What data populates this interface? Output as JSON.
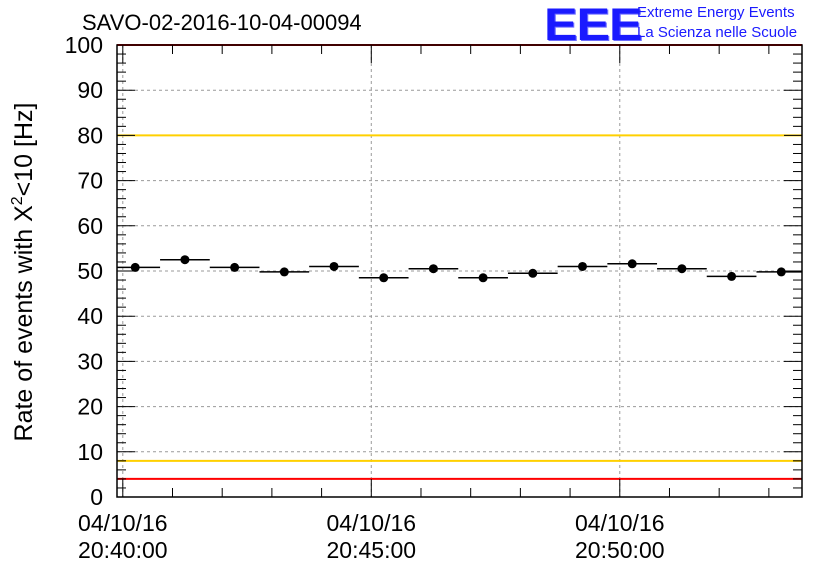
{
  "header": {
    "title": "SAVO-02-2016-10-04-00094",
    "logo_text": "EEE",
    "logo_line1": "Extreme Energy Events",
    "logo_line2": "La Scienza nelle Scuole"
  },
  "colors": {
    "upper_limit": "#ff0000",
    "upper_warning": "#ffd000",
    "lower_warning": "#ffd000",
    "lower_limit": "#ff0000",
    "marker": "#000000",
    "logo": "#1a1aff"
  },
  "chart_data": {
    "type": "scatter",
    "title": "SAVO-02-2016-10-04-00094",
    "ylabel": "Rate of events with X²<10 [Hz]",
    "xlabel": "",
    "ylim": [
      0,
      100
    ],
    "yticks": [
      "0",
      "10",
      "20",
      "30",
      "40",
      "50",
      "60",
      "70",
      "80",
      "90",
      "100"
    ],
    "xticks": [
      {
        "date": "04/10/16",
        "time": "20:40:00"
      },
      {
        "date": "04/10/16",
        "time": "20:45:00"
      },
      {
        "date": "04/10/16",
        "time": "20:50:00"
      }
    ],
    "xrange_time": [
      "20:39:53",
      "20:53:40"
    ],
    "grid": true,
    "reference_lines": [
      {
        "y": 100,
        "color": "#ff0000"
      },
      {
        "y": 80,
        "color": "#ffd000"
      },
      {
        "y": 8,
        "color": "#ffd000"
      },
      {
        "y": 4,
        "color": "#ff0000"
      }
    ],
    "series": [
      {
        "points": [
          {
            "x": "20:40:15",
            "y": 50.8
          },
          {
            "x": "20:41:15",
            "y": 52.5
          },
          {
            "x": "20:42:15",
            "y": 50.8
          },
          {
            "x": "20:43:15",
            "y": 49.8
          },
          {
            "x": "20:44:15",
            "y": 51.0
          },
          {
            "x": "20:45:15",
            "y": 48.5
          },
          {
            "x": "20:46:15",
            "y": 50.5
          },
          {
            "x": "20:47:15",
            "y": 48.5
          },
          {
            "x": "20:48:15",
            "y": 49.5
          },
          {
            "x": "20:49:15",
            "y": 51.0
          },
          {
            "x": "20:50:15",
            "y": 51.6
          },
          {
            "x": "20:51:15",
            "y": 50.5
          },
          {
            "x": "20:52:15",
            "y": 48.8
          },
          {
            "x": "20:53:15",
            "y": 49.8
          }
        ]
      }
    ]
  }
}
